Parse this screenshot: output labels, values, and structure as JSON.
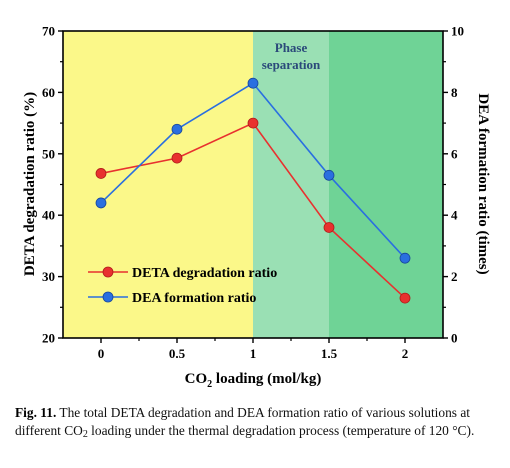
{
  "chart_data": {
    "type": "line",
    "x": [
      0,
      0.5,
      1,
      1.5,
      2
    ],
    "x_ticks": [
      "0",
      "0.5",
      "1",
      "1.5",
      "2"
    ],
    "xlabel": {
      "main": "CO",
      "sub": "2",
      "rest": " loading (mol/kg)"
    },
    "ylabel_left": "DETA degradation ratio (%)",
    "ylabel_right": "DEA formation ratio (times)",
    "ylim_left": [
      20,
      70
    ],
    "ylim_right": [
      0,
      10
    ],
    "y_ticks_left": [
      "20",
      "30",
      "40",
      "50",
      "60",
      "70"
    ],
    "y_ticks_right": [
      "0",
      "2",
      "4",
      "6",
      "8",
      "10"
    ],
    "series": [
      {
        "name": "DETA degradation ratio",
        "axis": "left",
        "color": "#e8312f",
        "values": [
          46.8,
          49.3,
          55.0,
          38.0,
          26.5
        ]
      },
      {
        "name": "DEA formation ratio",
        "axis": "right",
        "color": "#2a6fe0",
        "values": [
          4.4,
          6.8,
          8.3,
          5.3,
          2.6
        ]
      }
    ],
    "regions": [
      {
        "from": -0.25,
        "to": 1.0,
        "color": "#fbf889"
      },
      {
        "from": 1.0,
        "to": 1.5,
        "color": "#9ae0b4"
      },
      {
        "from": 1.5,
        "to": 2.25,
        "color": "#6fd396"
      }
    ],
    "annotation": {
      "line1": "Phase",
      "line2": "separation",
      "color": "#2b4a7a"
    },
    "legend_position": "bottom-left"
  },
  "caption": {
    "label": "Fig. 11.",
    "text_before_sub": " The total DETA degradation and DEA formation ratio of various solutions at different CO",
    "sub": "2",
    "text_after_sub": " loading under the thermal degradation process (temperature of 120 °C)."
  }
}
